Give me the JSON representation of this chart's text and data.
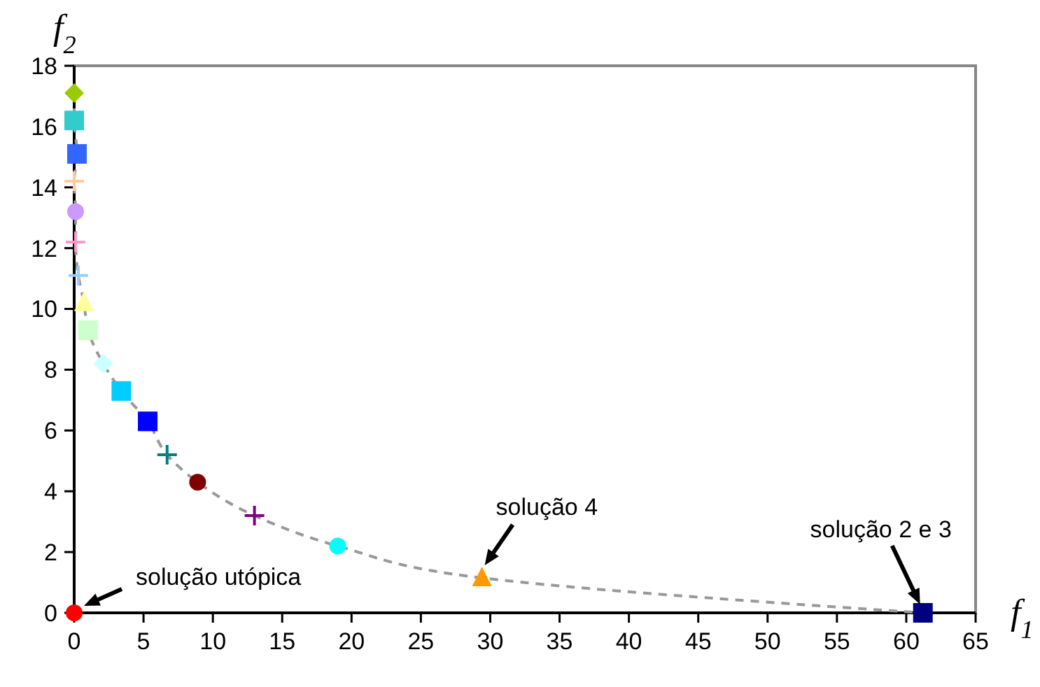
{
  "chart_data": {
    "type": "scatter",
    "xlabel": "f$_{1}$",
    "ylabel": "f$_{2}$",
    "xlim": [
      0,
      65
    ],
    "xticks": [
      0,
      5,
      10,
      15,
      20,
      25,
      30,
      35,
      40,
      45,
      50,
      55,
      60,
      65
    ],
    "ylim": [
      0,
      18
    ],
    "yticks": [
      0,
      2,
      4,
      6,
      8,
      10,
      12,
      14,
      16,
      18
    ],
    "grid": false,
    "series": [
      {
        "type": "line",
        "color": "#999999",
        "line_style": "dashed",
        "marker": "none",
        "x": [
          0,
          0,
          0.2,
          0,
          0.1,
          0.1,
          0.3,
          0.7,
          1.0,
          2.1,
          3.4,
          5.3,
          6.7,
          8.9,
          13.0,
          19.0,
          29.4,
          61.2
        ],
        "values": [
          17.1,
          16.2,
          15.1,
          14.2,
          13.2,
          12.2,
          11.1,
          10.2,
          9.3,
          8.2,
          7.3,
          6.3,
          5.2,
          4.3,
          3.2,
          2.2,
          1.15,
          0
        ]
      },
      {
        "color": "#99cc00",
        "marker": "diamond",
        "x": [
          0
        ],
        "values": [
          17.1
        ]
      },
      {
        "color": "#33cccc",
        "marker": "square",
        "x": [
          0
        ],
        "values": [
          16.2
        ]
      },
      {
        "color": "#3366ff",
        "marker": "square",
        "x": [
          0.2
        ],
        "values": [
          15.1
        ]
      },
      {
        "color": "#ffcc99",
        "marker": "cross",
        "x": [
          0
        ],
        "values": [
          14.2
        ]
      },
      {
        "color": "#cc99ff",
        "marker": "circle",
        "x": [
          0.1
        ],
        "values": [
          13.2
        ]
      },
      {
        "color": "#ff99cc",
        "marker": "cross",
        "x": [
          0.1
        ],
        "values": [
          12.2
        ]
      },
      {
        "color": "#99ccff",
        "marker": "cross",
        "x": [
          0.3
        ],
        "values": [
          11.1
        ]
      },
      {
        "color": "#ffff99",
        "marker": "triangle",
        "x": [
          0.7
        ],
        "values": [
          10.2
        ]
      },
      {
        "color": "#ccffcc",
        "marker": "square",
        "x": [
          1.0
        ],
        "values": [
          9.3
        ]
      },
      {
        "color": "#ccffff",
        "marker": "diamond",
        "x": [
          2.1
        ],
        "values": [
          8.2
        ]
      },
      {
        "color": "#00ccff",
        "marker": "square",
        "x": [
          3.4
        ],
        "values": [
          7.3
        ]
      },
      {
        "color": "#0000ff",
        "marker": "square",
        "x": [
          5.3
        ],
        "values": [
          6.3
        ]
      },
      {
        "color": "#008080",
        "marker": "cross",
        "x": [
          6.7
        ],
        "values": [
          5.2
        ]
      },
      {
        "color": "#800000",
        "marker": "circle",
        "x": [
          8.9
        ],
        "values": [
          4.3
        ]
      },
      {
        "color": "#800080",
        "marker": "cross",
        "x": [
          13.0
        ],
        "values": [
          3.2
        ]
      },
      {
        "color": "#00ffff",
        "marker": "circle",
        "x": [
          19.0
        ],
        "values": [
          2.2
        ]
      },
      {
        "color": "#ff9900",
        "marker": "triangle",
        "x": [
          29.4
        ],
        "values": [
          1.15
        ]
      },
      {
        "color": "#000080",
        "marker": "square",
        "x": [
          61.2
        ],
        "values": [
          0
        ]
      },
      {
        "color": "#ff0000",
        "marker": "circle",
        "x": [
          0
        ],
        "values": [
          0
        ]
      }
    ],
    "annotations": [
      {
        "text": "solução utópica",
        "x": 0,
        "y": 0
      },
      {
        "text": "solução 4",
        "x": 29.4,
        "y": 1.15
      },
      {
        "text": "solução 2 e 3",
        "x": 61.2,
        "y": 0
      }
    ]
  }
}
